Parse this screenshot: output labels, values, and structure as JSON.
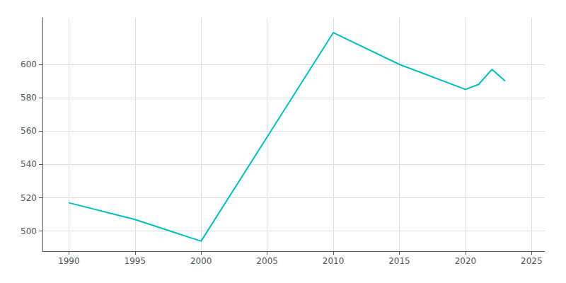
{
  "chart_data": {
    "type": "line",
    "x": [
      1990,
      1995,
      2000,
      2010,
      2015,
      2020,
      2021,
      2022,
      2023
    ],
    "values": [
      517,
      507,
      494,
      619,
      600,
      585,
      588,
      597,
      590
    ],
    "color": "#00BEBE",
    "xlim": [
      1988,
      2026
    ],
    "ylim": [
      488,
      628
    ],
    "xticks": [
      1990,
      1995,
      2000,
      2005,
      2010,
      2015,
      2020,
      2025
    ],
    "yticks": [
      500,
      520,
      540,
      560,
      580,
      600
    ],
    "grid": true
  }
}
